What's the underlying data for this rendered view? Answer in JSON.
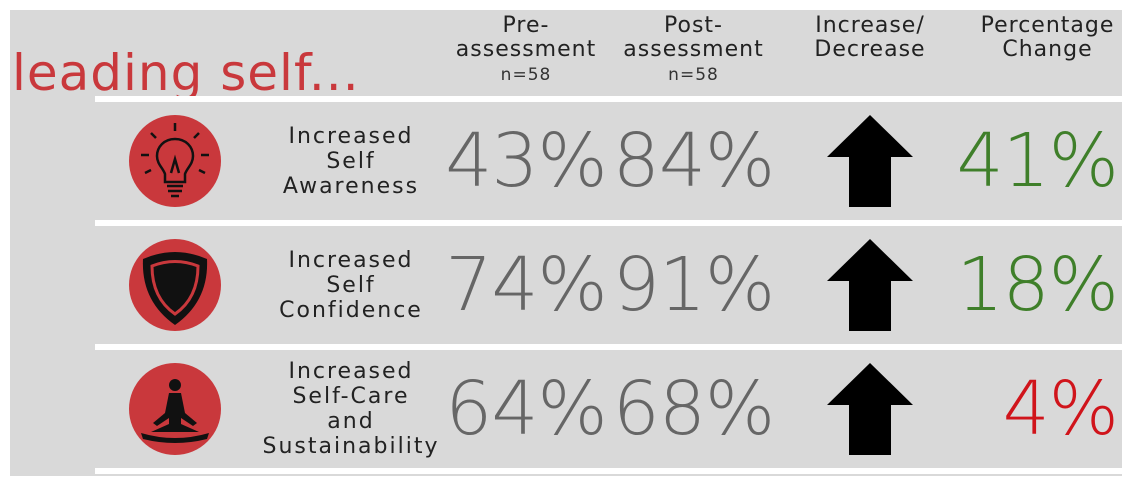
{
  "title": "leading self...",
  "header": {
    "pre": "Pre-\nassessment",
    "pre_n": "n=58",
    "post": "Post-\nassessment",
    "post_n": "n=58",
    "direction": "Increase/\nDecrease",
    "change": "Percentage\nChange"
  },
  "rows": [
    {
      "label": "Increased\nSelf\nAwareness",
      "pre": "43%",
      "post": "84%",
      "change": "41%",
      "change_color": "#3f7f2a"
    },
    {
      "label": "Increased\nSelf\nConfidence",
      "pre": "74%",
      "post": "91%",
      "change": "18%",
      "change_color": "#3f7f2a"
    },
    {
      "label": "Increased\nSelf-Care\nand\nSustainability",
      "pre": "64%",
      "post": "68%",
      "change": "4%",
      "change_color": "#d0141b"
    }
  ]
}
